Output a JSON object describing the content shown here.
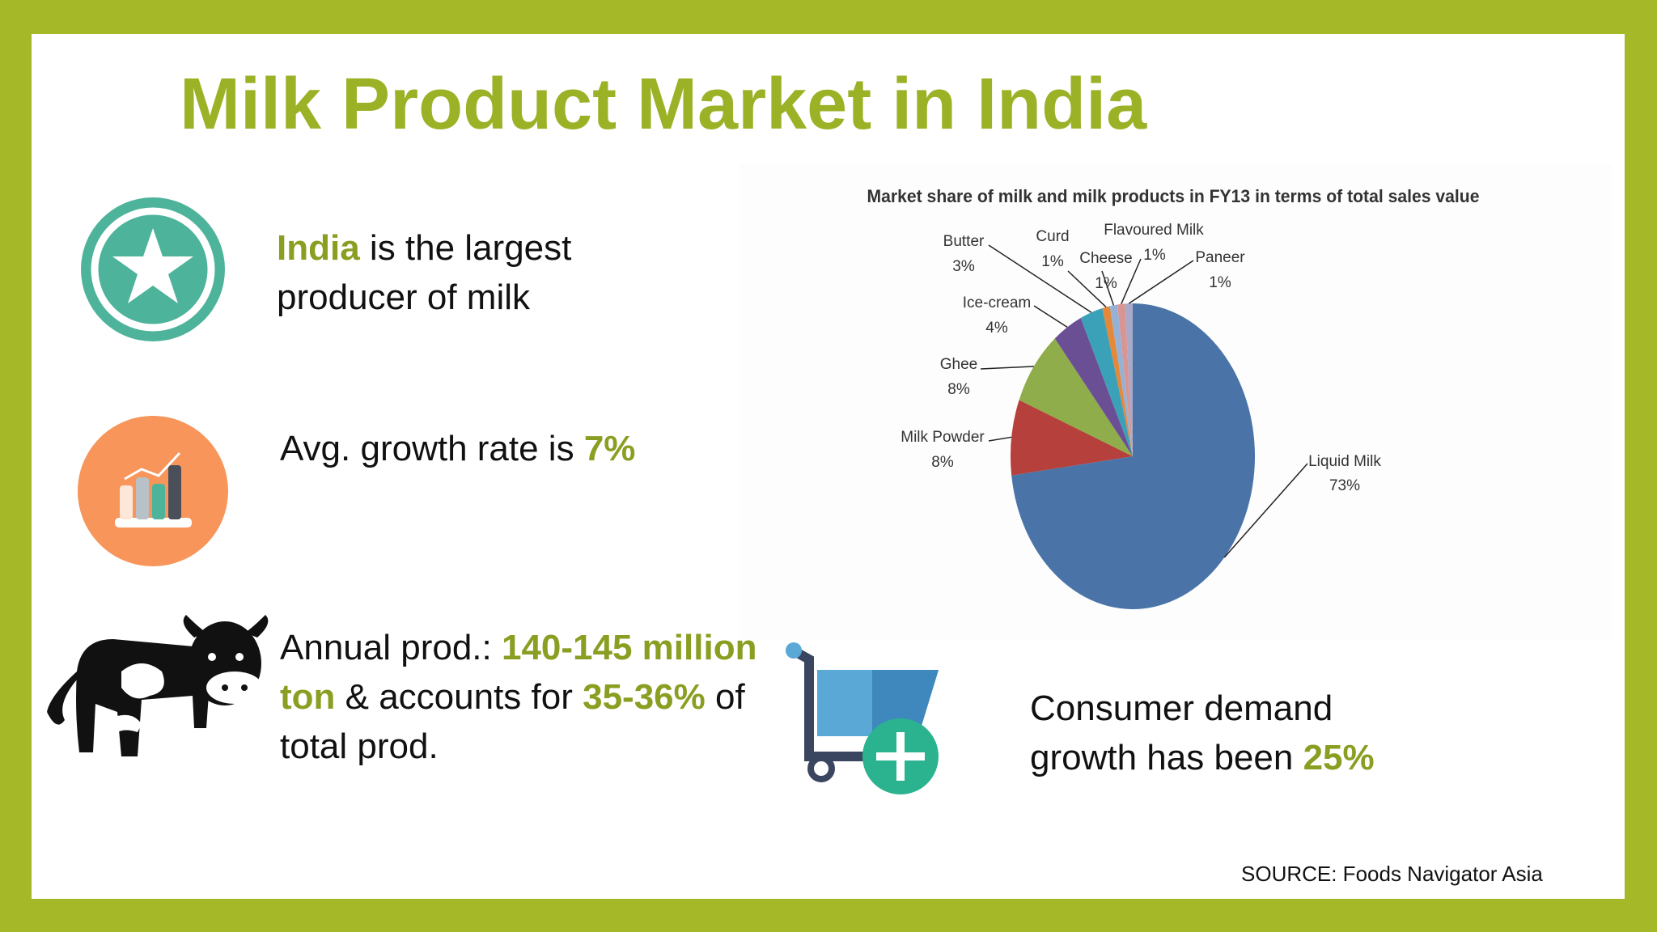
{
  "title": "Milk Product Market in India",
  "facts": [
    {
      "segments": [
        {
          "text": "India",
          "emphasis": true
        },
        {
          "text": " is the largest producer of milk"
        }
      ]
    },
    {
      "segments": [
        {
          "text": "Avg. growth rate is "
        },
        {
          "text": "7%",
          "emphasis": true
        }
      ]
    },
    {
      "segments": [
        {
          "text": "Annual prod.: "
        },
        {
          "text": "140-145 million ton",
          "emphasis": true
        },
        {
          "text": " & accounts for "
        },
        {
          "text": "35-36%",
          "emphasis": true
        },
        {
          "text": " of total prod."
        }
      ]
    },
    {
      "segments": [
        {
          "text": "Consumer demand growth has been "
        },
        {
          "text": "25%",
          "emphasis": true
        }
      ]
    }
  ],
  "source": "SOURCE: Foods Navigator Asia",
  "chart_data": {
    "type": "pie",
    "title": "Market share of milk and milk products in FY13 in terms of total sales value",
    "categories": [
      "Liquid Milk",
      "Milk Powder",
      "Ghee",
      "Ice-cream",
      "Butter",
      "Curd",
      "Cheese",
      "Flavoured Milk",
      "Paneer"
    ],
    "values": [
      73,
      8,
      8,
      4,
      3,
      1,
      1,
      1,
      1
    ],
    "value_labels": [
      "73%",
      "8%",
      "8%",
      "4%",
      "3%",
      "1%",
      "1%",
      "1%",
      "1%"
    ],
    "colors": [
      "#4a74a8",
      "#b5403c",
      "#8fad4a",
      "#6b4f94",
      "#3aa1b8",
      "#e6883a",
      "#95b2d6",
      "#d99594",
      "#a9a9c8"
    ]
  }
}
